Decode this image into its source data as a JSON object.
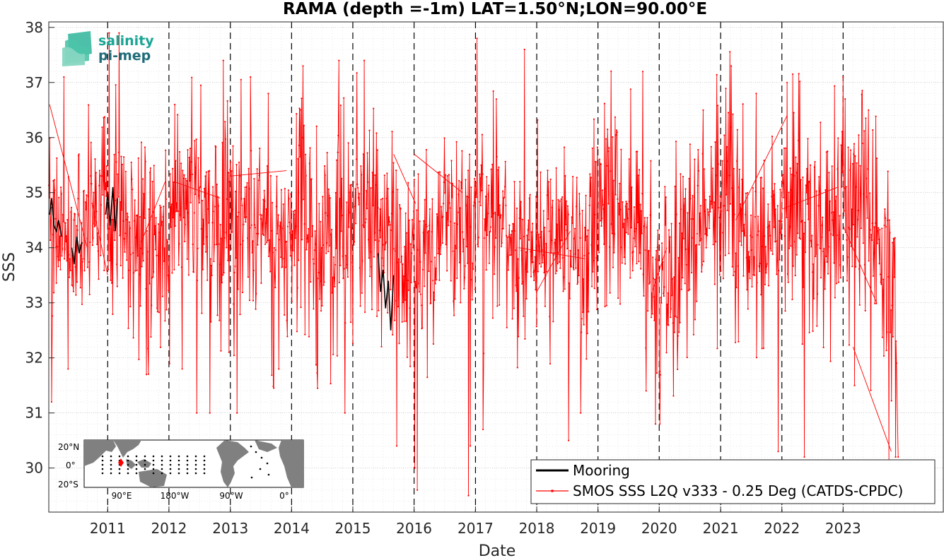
{
  "chart_data": {
    "type": "line",
    "title": "RAMA (depth =-1m) LAT=1.50°N;LON=90.00°E",
    "xlabel": "Date",
    "ylabel": "SSS",
    "xlim": [
      "2010-01-15",
      "2024-08-20"
    ],
    "ylim": [
      29.2,
      38.1
    ],
    "x_tick_labels": [
      "2011",
      "2012",
      "2013",
      "2014",
      "2015",
      "2016",
      "2017",
      "2018",
      "2019",
      "2020",
      "2021",
      "2022",
      "2023"
    ],
    "y_tick_labels": [
      "30",
      "31",
      "32",
      "33",
      "34",
      "35",
      "36",
      "37",
      "38"
    ],
    "grid": true,
    "year_dividers": true,
    "legend_position": "bottom-right",
    "series": [
      {
        "name": "Mooring",
        "color": "#000000",
        "style": "line",
        "segments": [
          {
            "x": [
              "2010-01-20",
              "2010-02-01",
              "2010-02-15",
              "2010-03-01",
              "2010-03-15",
              "2010-04-01"
            ],
            "y": [
              34.6,
              34.9,
              34.4,
              34.3,
              34.5,
              34.2
            ]
          },
          {
            "x": [
              "2010-06-01",
              "2010-06-15",
              "2010-07-01",
              "2010-07-15",
              "2010-08-01"
            ],
            "y": [
              34.0,
              33.7,
              34.2,
              33.9,
              34.1
            ]
          },
          {
            "x": [
              "2010-12-20",
              "2011-01-01",
              "2011-01-15",
              "2011-02-01",
              "2011-02-15",
              "2011-03-01"
            ],
            "y": [
              34.6,
              35.0,
              34.4,
              35.1,
              34.3,
              34.9
            ]
          },
          {
            "x": [
              "2015-06-01",
              "2015-06-15",
              "2015-07-01",
              "2015-07-15",
              "2015-08-01",
              "2015-08-15",
              "2015-09-01"
            ],
            "y": [
              33.9,
              33.2,
              33.6,
              32.9,
              33.4,
              32.5,
              33.5
            ]
          }
        ]
      },
      {
        "name": "SMOS SSS L2Q v333 - 0.25 Deg (CATDS-CPDC)",
        "color": "#ff0000",
        "style": "line-with-dots",
        "anchors": {
          "x": [
            "2010-01-15",
            "2010-03-01",
            "2010-06-01",
            "2010-09-01",
            "2010-12-01",
            "2011-03-01",
            "2011-06-01",
            "2011-09-01",
            "2011-12-01",
            "2012-03-01",
            "2012-06-01",
            "2012-09-01",
            "2012-12-01",
            "2013-03-01",
            "2013-06-01",
            "2013-09-01",
            "2013-12-01",
            "2014-03-01",
            "2014-06-01",
            "2014-09-01",
            "2014-12-01",
            "2015-03-01",
            "2015-06-01",
            "2015-09-01",
            "2015-12-01",
            "2016-03-01",
            "2016-06-01",
            "2016-09-01",
            "2016-12-01",
            "2017-03-01",
            "2017-06-01",
            "2017-09-01",
            "2017-12-01",
            "2018-03-01",
            "2018-06-01",
            "2018-09-01",
            "2018-12-01",
            "2019-03-01",
            "2019-06-01",
            "2019-09-01",
            "2019-12-01",
            "2020-03-01",
            "2020-06-01",
            "2020-09-01",
            "2020-12-01",
            "2021-03-01",
            "2021-06-01",
            "2021-09-01",
            "2021-12-01",
            "2022-03-01",
            "2022-06-01",
            "2022-09-01",
            "2022-12-01",
            "2023-03-01",
            "2023-06-01",
            "2023-09-01",
            "2023-11-20"
          ],
          "mean": [
            34.5,
            34.3,
            34.3,
            34.2,
            34.6,
            34.4,
            34.1,
            33.8,
            34.1,
            34.8,
            34.6,
            34.3,
            34.2,
            34.5,
            34.2,
            34.0,
            34.2,
            34.3,
            34.1,
            34.0,
            34.4,
            34.8,
            34.3,
            34.0,
            33.9,
            34.0,
            34.1,
            34.2,
            34.3,
            34.6,
            34.4,
            34.1,
            33.9,
            34.2,
            34.3,
            34.1,
            34.5,
            35.1,
            34.7,
            34.2,
            33.6,
            33.2,
            34.0,
            34.5,
            34.7,
            34.9,
            34.5,
            34.2,
            34.3,
            34.8,
            34.5,
            34.2,
            34.4,
            35.0,
            34.2,
            33.6,
            33.5
          ],
          "amplitude": [
            1.2,
            1.4,
            1.4,
            1.4,
            1.6,
            1.5,
            1.5,
            1.6,
            1.5,
            1.5,
            1.4,
            1.3,
            1.4,
            1.5,
            1.5,
            1.4,
            1.3,
            1.4,
            1.4,
            1.3,
            1.4,
            1.5,
            1.5,
            1.4,
            1.4,
            1.4,
            1.3,
            1.3,
            1.4,
            1.5,
            1.4,
            1.3,
            1.4,
            1.4,
            1.4,
            1.3,
            1.5,
            1.6,
            1.5,
            1.4,
            1.5,
            1.6,
            1.5,
            1.4,
            1.5,
            1.5,
            1.5,
            1.4,
            1.4,
            1.5,
            1.5,
            1.4,
            1.4,
            1.6,
            1.7,
            1.8,
            1.6
          ]
        },
        "extremes": {
          "x": [
            "2010-02-01",
            "2010-04-15",
            "2010-05-10",
            "2011-01-10",
            "2011-03-10",
            "2011-08-20",
            "2012-02-05",
            "2012-03-20",
            "2012-06-15",
            "2012-09-01",
            "2012-11-20",
            "2013-02-10",
            "2013-05-01",
            "2013-08-15",
            "2014-03-10",
            "2014-10-10",
            "2014-11-15",
            "2015-03-10",
            "2015-09-20",
            "2016-01-05",
            "2016-01-20",
            "2016-11-20",
            "2016-12-01",
            "2017-01-10",
            "2017-02-15",
            "2017-10-20",
            "2018-07-10",
            "2018-09-20",
            "2019-09-25",
            "2019-10-15",
            "2019-12-10",
            "2020-01-05",
            "2021-03-05",
            "2021-08-01",
            "2021-12-10",
            "2022-02-01",
            "2022-05-15",
            "2023-01-01",
            "2023-03-10",
            "2023-06-01",
            "2023-10-01",
            "2023-11-10",
            "2023-11-25"
          ],
          "y": [
            31.2,
            37.1,
            31.8,
            37.9,
            37.9,
            31.7,
            36.6,
            31.8,
            31.0,
            31.0,
            37.4,
            31.0,
            37.1,
            36.8,
            37.3,
            37.4,
            31.0,
            37.4,
            30.4,
            30.0,
            29.6,
            29.5,
            30.4,
            37.8,
            30.7,
            37.6,
            30.5,
            31.0,
            37.2,
            31.4,
            30.8,
            30.8,
            37.3,
            36.8,
            30.3,
            37.0,
            30.2,
            37.1,
            31.5,
            36.5,
            30.1,
            30.2,
            30.2
          ]
        },
        "gap_connectors": [
          {
            "x": [
              "2010-01-20",
              "2010-09-01"
            ],
            "y": [
              36.6,
              34.0
            ]
          },
          {
            "x": [
              "2010-10-01",
              "2011-01-01"
            ],
            "y": [
              34.8,
              33.5
            ]
          },
          {
            "x": [
              "2011-07-20",
              "2011-12-10"
            ],
            "y": [
              34.1,
              35.2
            ]
          },
          {
            "x": [
              "2012-02-01",
              "2012-11-01"
            ],
            "y": [
              35.2,
              34.9
            ]
          },
          {
            "x": [
              "2013-01-01",
              "2013-12-01"
            ],
            "y": [
              35.3,
              35.4
            ]
          },
          {
            "x": [
              "2015-09-01",
              "2016-01-10"
            ],
            "y": [
              35.7,
              34.8
            ]
          },
          {
            "x": [
              "2016-01-01",
              "2016-10-15"
            ],
            "y": [
              35.7,
              35.0
            ]
          },
          {
            "x": [
              "2017-09-15",
              "2018-10-15"
            ],
            "y": [
              34.0,
              33.8
            ]
          },
          {
            "x": [
              "2018-01-01",
              "2018-07-20"
            ],
            "y": [
              33.2,
              34.3
            ]
          },
          {
            "x": [
              "2019-11-20",
              "2020-02-15"
            ],
            "y": [
              33.2,
              34.0
            ]
          },
          {
            "x": [
              "2021-04-01",
              "2022-02-01"
            ],
            "y": [
              34.5,
              36.4
            ]
          },
          {
            "x": [
              "2022-01-01",
              "2022-12-01"
            ],
            "y": [
              34.7,
              35.1
            ]
          },
          {
            "x": [
              "2023-01-01",
              "2023-07-20"
            ],
            "y": [
              34.4,
              33.0
            ]
          },
          {
            "x": [
              "2023-03-01",
              "2023-10-15"
            ],
            "y": [
              32.2,
              30.3
            ]
          }
        ]
      }
    ]
  },
  "logo": {
    "line1": "salinity",
    "line2": "pi-mep",
    "color_line1": "#1aa594",
    "color_line2": "#1f6b78"
  },
  "inset_map": {
    "lat_labels": [
      "20°N",
      "0°",
      "20°S"
    ],
    "lon_labels": [
      "90°E",
      "180°W",
      "90°W",
      "0°"
    ],
    "marker_color": "#ff0000",
    "land_color": "#808080",
    "ocean_color": "#ffffff"
  }
}
